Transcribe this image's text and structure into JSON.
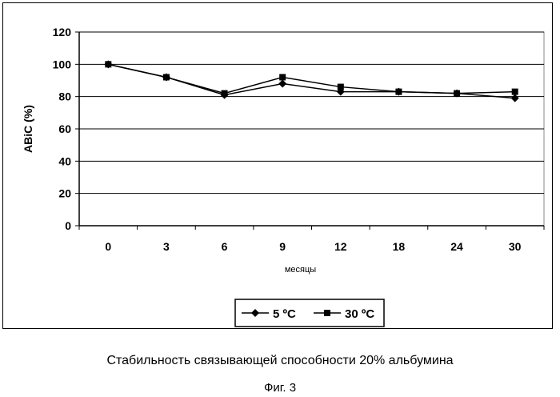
{
  "chart_data": {
    "type": "line",
    "categories": [
      "0",
      "3",
      "6",
      "9",
      "12",
      "18",
      "24",
      "30"
    ],
    "series": [
      {
        "name": "5 ºC",
        "marker": "diamond",
        "values": [
          100,
          92,
          81,
          88,
          83,
          83,
          82,
          79
        ]
      },
      {
        "name": "30 ºC",
        "marker": "square",
        "values": [
          100,
          92,
          82,
          92,
          86,
          83,
          82,
          83
        ]
      }
    ],
    "xlabel": "месяцы",
    "ylabel": "ABiC (%)",
    "ylim": [
      0,
      120
    ],
    "yticks": [
      0,
      20,
      40,
      60,
      80,
      100,
      120
    ],
    "grid": true,
    "legend": "bottom-center",
    "line_color": "#000000",
    "marker_color": "#000000"
  },
  "caption": "Стабильность связывающей способности 20% альбумина",
  "figure_label": "Фиг. 3"
}
